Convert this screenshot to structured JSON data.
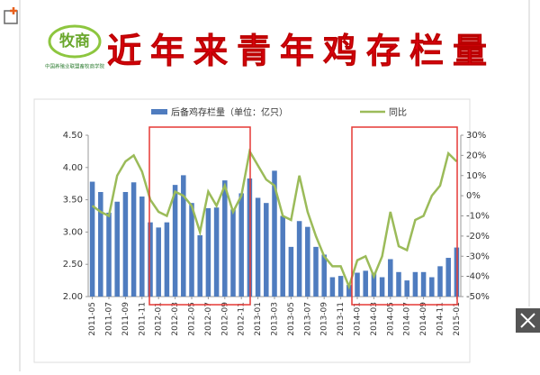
{
  "header": {
    "logo": "牧商",
    "org": "中国养殖业联盟畜牧商学院",
    "title": "近年来青年鸡存栏量"
  },
  "chart_data": {
    "type": "bar-line",
    "categories": [
      "2011-05",
      null,
      "2011-07",
      null,
      "2011-09",
      null,
      "2011-11",
      null,
      "2012-01",
      null,
      "2012-03",
      null,
      "2012-05",
      null,
      "2012-07",
      null,
      "2012-09",
      null,
      "2012-11",
      null,
      "2013-01",
      null,
      "2013-03",
      null,
      "2013-05",
      null,
      "2013-07",
      null,
      "2013-09",
      null,
      "2013-11",
      null,
      "2014-01",
      null,
      "2014-03",
      null,
      "2014-05",
      null,
      "2014-07",
      null,
      "2014-09",
      null,
      "2014-11",
      null,
      "2015-01"
    ],
    "series": [
      {
        "name": "后备鸡存栏量（单位：亿只）",
        "color": "#4f7cbf",
        "type": "bar",
        "values": [
          3.78,
          3.62,
          3.3,
          3.47,
          3.62,
          3.77,
          3.55,
          3.15,
          3.07,
          3.15,
          3.73,
          3.88,
          3.45,
          2.95,
          3.37,
          3.38,
          3.8,
          3.35,
          3.6,
          3.83,
          3.53,
          3.45,
          3.95,
          3.25,
          2.77,
          3.17,
          3.08,
          2.77,
          2.65,
          2.3,
          2.32,
          2.18,
          2.37,
          2.4,
          2.37,
          2.3,
          2.58,
          2.38,
          2.25,
          2.38,
          2.38,
          2.3,
          2.47,
          2.6,
          2.76
        ]
      },
      {
        "name": "同比",
        "color": "#9bbb59",
        "type": "line",
        "axis": "y2",
        "values": [
          -5,
          -8,
          -10,
          10,
          17,
          20,
          12,
          -2,
          -8,
          -10,
          2,
          0,
          -5,
          -18,
          2,
          -5,
          5,
          -8,
          0,
          22,
          15,
          8,
          5,
          -10,
          -12,
          10,
          -8,
          -20,
          -30,
          -35,
          -35,
          -45,
          -32,
          -30,
          -40,
          -30,
          -8,
          -25,
          -27,
          -12,
          -10,
          0,
          5,
          21,
          17
        ]
      }
    ],
    "ylim": [
      2,
      4.5
    ],
    "yticks": [
      {
        "value": 2,
        "label": "2.00"
      },
      {
        "value": 2.5,
        "label": "2.50"
      },
      {
        "value": 3,
        "label": "3.00"
      },
      {
        "value": 3.5,
        "label": "3.50"
      },
      {
        "value": 4,
        "label": "4.00"
      },
      {
        "value": 4.5,
        "label": "4.50"
      }
    ],
    "y2lim": [
      -50,
      30
    ],
    "y2ticks": [
      {
        "value": -50,
        "label": "-50%"
      },
      {
        "value": -40,
        "label": "-40%"
      },
      {
        "value": -30,
        "label": "-30%"
      },
      {
        "value": -20,
        "label": "-20%"
      },
      {
        "value": -10,
        "label": "-10%"
      },
      {
        "value": 0,
        "label": "0%"
      },
      {
        "value": 10,
        "label": "10%"
      },
      {
        "value": 20,
        "label": "20%"
      },
      {
        "value": 30,
        "label": "30%"
      }
    ]
  }
}
